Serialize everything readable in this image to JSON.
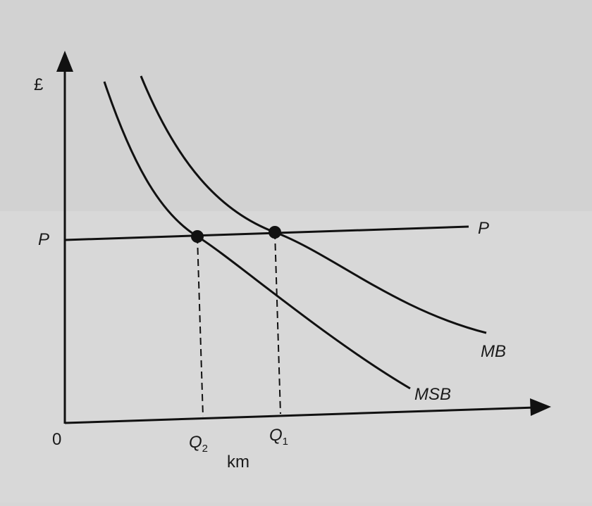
{
  "axes": {
    "y_label": "£",
    "x_label": "km",
    "origin": "0"
  },
  "price_line": {
    "left_label": "P",
    "right_label": "P"
  },
  "curves": [
    {
      "label": "MB"
    },
    {
      "label": "MSB"
    }
  ],
  "quantities": [
    {
      "main": "Q",
      "sub": "2"
    },
    {
      "main": "Q",
      "sub": "1"
    }
  ]
}
